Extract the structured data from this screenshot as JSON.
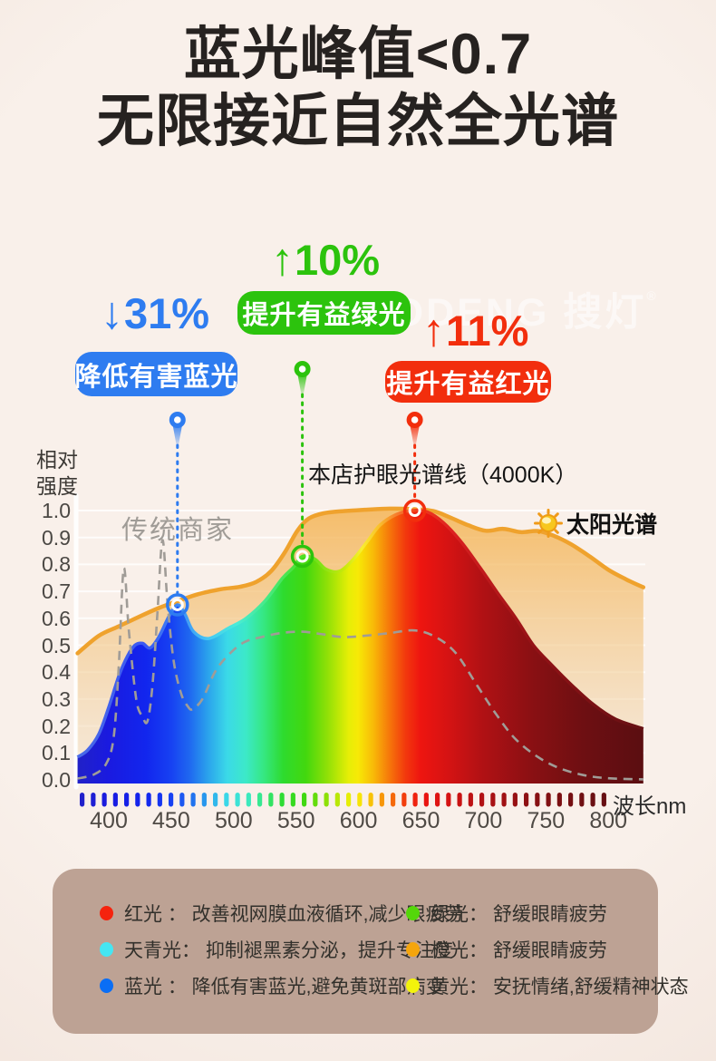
{
  "title": {
    "line1": "蓝光峰值<0.7",
    "line2": "无限接近自然全光谱"
  },
  "watermark": {
    "text": "SODENG 搜灯",
    "reg": "®"
  },
  "annotations": [
    {
      "id": "blue",
      "arrow": "↓",
      "percent": "31%",
      "label": "降低有害蓝光",
      "color": "#2e7cf0"
    },
    {
      "id": "green",
      "arrow": "↑",
      "percent": "10%",
      "label": "提升有益绿光",
      "color": "#2cc30d"
    },
    {
      "id": "red",
      "arrow": "↑",
      "percent": "11%",
      "label": "提升有益红光",
      "color": "#f22e0d"
    }
  ],
  "chart_labels": {
    "y_axis_title": "相对\n强度",
    "x_axis_title": "波长nm",
    "traditional": "传统商家",
    "store": "本店护眼光谱线（4000K）",
    "sun": "太阳光谱"
  },
  "chart_data": {
    "type": "area",
    "xlabel": "波长nm",
    "ylabel": "相对强度",
    "xlim": [
      375,
      828
    ],
    "ylim": [
      0,
      1.0
    ],
    "xticks": [
      "400",
      "450",
      "500",
      "550",
      "600",
      "650",
      "700",
      "750",
      "800"
    ],
    "yticks": [
      "1.0",
      "0.9",
      "0.8",
      "0.7",
      "0.6",
      "0.5",
      "0.4",
      "0.3",
      "0.2",
      "0.1",
      "0.0"
    ],
    "grid": true,
    "series": [
      {
        "name": "本店护眼光谱线（4000K）",
        "type": "area-rainbow",
        "points": [
          [
            375,
            0.085
          ],
          [
            383,
            0.11
          ],
          [
            392,
            0.17
          ],
          [
            400,
            0.27
          ],
          [
            408,
            0.385
          ],
          [
            415,
            0.46
          ],
          [
            421,
            0.5
          ],
          [
            427,
            0.507
          ],
          [
            433,
            0.49
          ],
          [
            440,
            0.53
          ],
          [
            448,
            0.605
          ],
          [
            455,
            0.65
          ],
          [
            461,
            0.615
          ],
          [
            468,
            0.55
          ],
          [
            480,
            0.525
          ],
          [
            496,
            0.564
          ],
          [
            510,
            0.6
          ],
          [
            525,
            0.664
          ],
          [
            539,
            0.748
          ],
          [
            548,
            0.79
          ],
          [
            555,
            0.83
          ],
          [
            565,
            0.82
          ],
          [
            574,
            0.782
          ],
          [
            585,
            0.775
          ],
          [
            596,
            0.82
          ],
          [
            607,
            0.885
          ],
          [
            617,
            0.945
          ],
          [
            630,
            0.985
          ],
          [
            643,
            1.0
          ],
          [
            655,
            0.995
          ],
          [
            668,
            0.955
          ],
          [
            682,
            0.885
          ],
          [
            697,
            0.79
          ],
          [
            712,
            0.69
          ],
          [
            726,
            0.6
          ],
          [
            740,
            0.5
          ],
          [
            755,
            0.425
          ],
          [
            770,
            0.355
          ],
          [
            788,
            0.28
          ],
          [
            806,
            0.225
          ],
          [
            828,
            0.19
          ]
        ]
      },
      {
        "name": "太阳光谱",
        "type": "area-line",
        "color": "#efa22d",
        "points": [
          [
            375,
            0.47
          ],
          [
            392,
            0.535
          ],
          [
            408,
            0.57
          ],
          [
            424,
            0.605
          ],
          [
            440,
            0.638
          ],
          [
            456,
            0.665
          ],
          [
            472,
            0.69
          ],
          [
            490,
            0.708
          ],
          [
            505,
            0.717
          ],
          [
            518,
            0.735
          ],
          [
            530,
            0.775
          ],
          [
            541,
            0.845
          ],
          [
            551,
            0.925
          ],
          [
            560,
            0.97
          ],
          [
            572,
            0.99
          ],
          [
            588,
            0.998
          ],
          [
            605,
            1.003
          ],
          [
            625,
            1.007
          ],
          [
            645,
            1.005
          ],
          [
            660,
            0.998
          ],
          [
            673,
            0.975
          ],
          [
            688,
            0.945
          ],
          [
            702,
            0.925
          ],
          [
            716,
            0.932
          ],
          [
            730,
            0.92
          ],
          [
            744,
            0.924
          ],
          [
            757,
            0.905
          ],
          [
            770,
            0.875
          ],
          [
            785,
            0.83
          ],
          [
            800,
            0.78
          ],
          [
            814,
            0.745
          ],
          [
            828,
            0.715
          ]
        ]
      },
      {
        "name": "传统商家",
        "type": "dashed-line",
        "color": "#a09c97",
        "points": [
          [
            375,
            0.005
          ],
          [
            388,
            0.02
          ],
          [
            398,
            0.06
          ],
          [
            404,
            0.16
          ],
          [
            408,
            0.42
          ],
          [
            412,
            0.785
          ],
          [
            416,
            0.56
          ],
          [
            422,
            0.3
          ],
          [
            427,
            0.235
          ],
          [
            431,
            0.218
          ],
          [
            435,
            0.35
          ],
          [
            439,
            0.62
          ],
          [
            443,
            0.89
          ],
          [
            447,
            0.66
          ],
          [
            452,
            0.44
          ],
          [
            458,
            0.32
          ],
          [
            463,
            0.275
          ],
          [
            467,
            0.262
          ],
          [
            475,
            0.3
          ],
          [
            485,
            0.4
          ],
          [
            495,
            0.46
          ],
          [
            508,
            0.51
          ],
          [
            522,
            0.53
          ],
          [
            538,
            0.545
          ],
          [
            555,
            0.55
          ],
          [
            572,
            0.54
          ],
          [
            588,
            0.53
          ],
          [
            605,
            0.535
          ],
          [
            625,
            0.545
          ],
          [
            645,
            0.555
          ],
          [
            662,
            0.53
          ],
          [
            678,
            0.47
          ],
          [
            695,
            0.35
          ],
          [
            710,
            0.245
          ],
          [
            725,
            0.155
          ],
          [
            742,
            0.09
          ],
          [
            760,
            0.045
          ],
          [
            780,
            0.018
          ],
          [
            800,
            0.006
          ],
          [
            828,
            0.002
          ]
        ]
      }
    ],
    "markers": [
      {
        "wavelength": 455,
        "value": 0.65,
        "color": "#2e7cf0"
      },
      {
        "wavelength": 555,
        "value": 0.83,
        "color": "#2cc30d"
      },
      {
        "wavelength": 645,
        "value": 1.0,
        "color": "#f22e0d"
      }
    ],
    "axis_dash_count": 48,
    "spectrum_gradient": [
      {
        "offset": 0.0,
        "color": "#2121c8"
      },
      {
        "offset": 0.054,
        "color": "#1a1ae0"
      },
      {
        "offset": 0.12,
        "color": "#1226ee"
      },
      {
        "offset": 0.164,
        "color": "#1741f2"
      },
      {
        "offset": 0.197,
        "color": "#1f68f0"
      },
      {
        "offset": 0.23,
        "color": "#2ba4ec"
      },
      {
        "offset": 0.263,
        "color": "#3bd9e8"
      },
      {
        "offset": 0.296,
        "color": "#3ce9c8"
      },
      {
        "offset": 0.329,
        "color": "#35e77e"
      },
      {
        "offset": 0.362,
        "color": "#2edb2e"
      },
      {
        "offset": 0.402,
        "color": "#43d80e"
      },
      {
        "offset": 0.439,
        "color": "#8fe007"
      },
      {
        "offset": 0.477,
        "color": "#e6ee06"
      },
      {
        "offset": 0.494,
        "color": "#f7e906"
      },
      {
        "offset": 0.521,
        "color": "#f8b908"
      },
      {
        "offset": 0.549,
        "color": "#f6770a"
      },
      {
        "offset": 0.578,
        "color": "#f2370d"
      },
      {
        "offset": 0.604,
        "color": "#ee1510"
      },
      {
        "offset": 0.653,
        "color": "#d51313"
      },
      {
        "offset": 0.714,
        "color": "#b01114"
      },
      {
        "offset": 0.802,
        "color": "#891013"
      },
      {
        "offset": 0.89,
        "color": "#6e0f12"
      },
      {
        "offset": 1.0,
        "color": "#5a0e11"
      }
    ],
    "spectrum_stroke_gradient": [
      {
        "offset": 0.0,
        "color": "#4a6ae8"
      },
      {
        "offset": 0.12,
        "color": "#3a58f2"
      },
      {
        "offset": 0.18,
        "color": "#3f8ef5"
      },
      {
        "offset": 0.23,
        "color": "#45c8f5"
      },
      {
        "offset": 0.28,
        "color": "#49ecd8"
      },
      {
        "offset": 0.34,
        "color": "#46e97a"
      },
      {
        "offset": 0.4,
        "color": "#4fdf20"
      },
      {
        "offset": 0.47,
        "color": "#cbe90a"
      },
      {
        "offset": 0.5,
        "color": "#f8ef30"
      },
      {
        "offset": 0.53,
        "color": "#f9c12c"
      },
      {
        "offset": 0.56,
        "color": "#f7802e"
      },
      {
        "offset": 0.6,
        "color": "#f03a1e"
      },
      {
        "offset": 0.66,
        "color": "#dd2020"
      },
      {
        "offset": 0.8,
        "color": "#951216"
      },
      {
        "offset": 1.0,
        "color": "#641013"
      }
    ]
  },
  "legend": {
    "items": [
      {
        "label": "红光 ：",
        "desc": "改善视网膜血液循环,减少眼疲劳",
        "color": "#f5230e"
      },
      {
        "label": "绿光：",
        "desc": "舒缓眼睛疲劳",
        "color": "#54d70a"
      },
      {
        "label": "天青光：",
        "desc": "抑制褪黑素分泌，提升专注度",
        "color": "#45e6f2"
      },
      {
        "label": "橙光：",
        "desc": "舒缓眼睛疲劳",
        "color": "#f5a50c"
      },
      {
        "label": "蓝光 ：",
        "desc": "降低有害蓝光,避免黄斑部病变",
        "color": "#0a6ef5"
      },
      {
        "label": "黄光：",
        "desc": "安抚情绪,舒缓精神状态",
        "color": "#f3f30c"
      }
    ]
  }
}
